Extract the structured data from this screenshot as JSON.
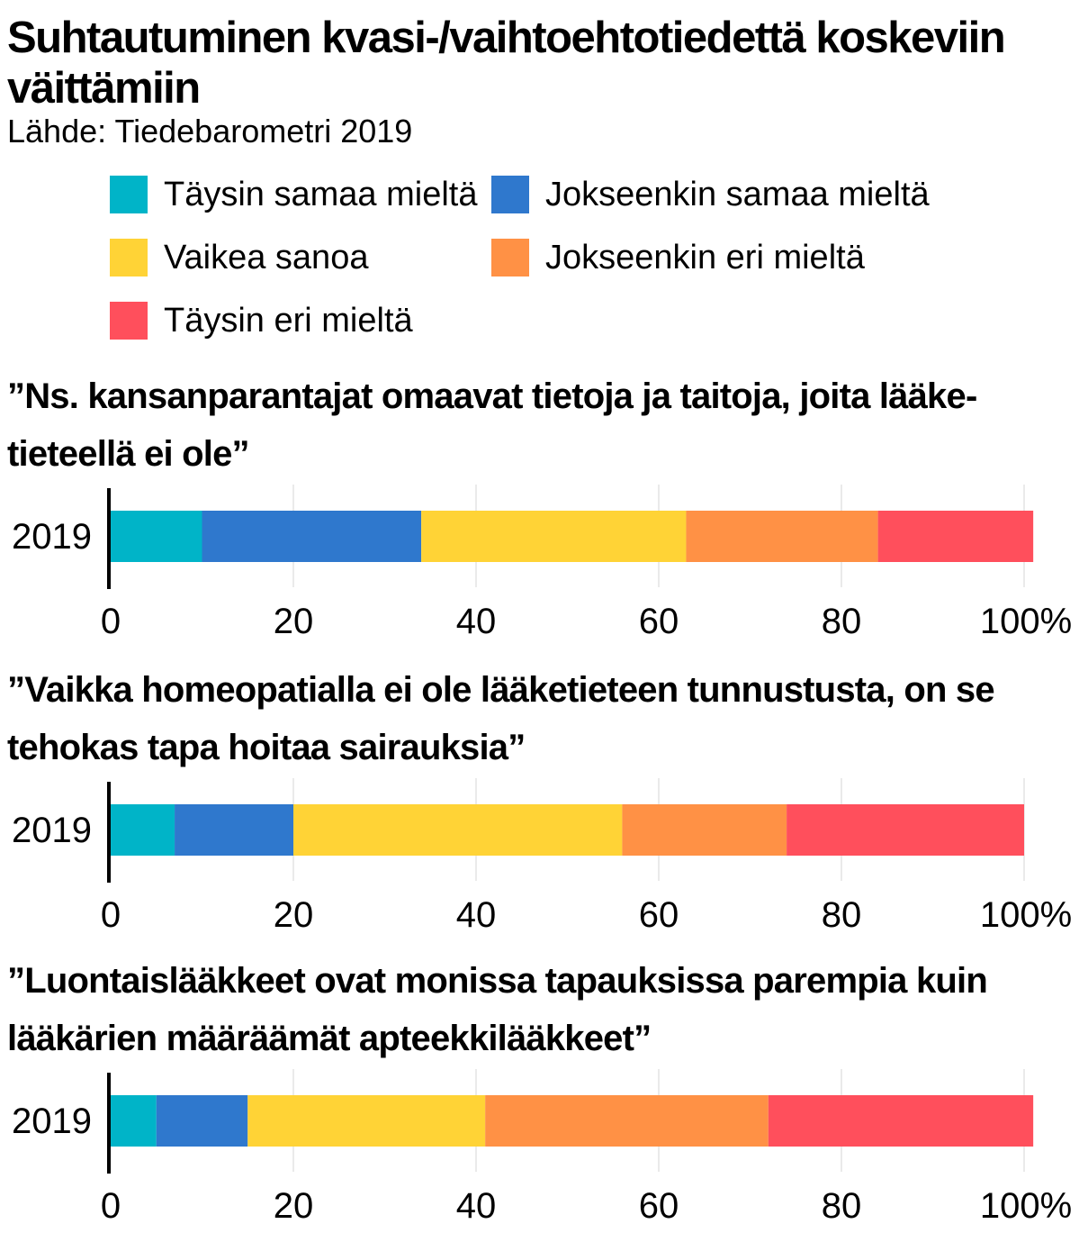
{
  "title": "Suhtautuminen kvasi-/vaihtoehtotiedettä koskeviin väittämiin",
  "source": "Lähde: Tiedebarometri 2019",
  "legend": [
    {
      "label": "Täysin samaa mieltä",
      "color": "#00b4c8"
    },
    {
      "label": "Jokseenkin samaa mieltä",
      "color": "#2f78cd"
    },
    {
      "label": "Vaikea sanoa",
      "color": "#ffd336"
    },
    {
      "label": "Jokseenkin eri mieltä",
      "color": "#ff9145"
    },
    {
      "label": "Täysin eri mieltä",
      "color": "#ff4f5c"
    }
  ],
  "chart_data": [
    {
      "type": "bar",
      "orientation": "horizontal",
      "stacked": true,
      "title": "”Ns. kansanparantajat omaavat tietoja ja taitoja, joita lääke-tieteellä ei ole”",
      "categories": [
        "2019"
      ],
      "series": [
        {
          "name": "Täysin samaa mieltä",
          "values": [
            10
          ]
        },
        {
          "name": "Jokseenkin samaa mieltä",
          "values": [
            24
          ]
        },
        {
          "name": "Vaikea sanoa",
          "values": [
            29
          ]
        },
        {
          "name": "Jokseenkin eri mieltä",
          "values": [
            21
          ]
        },
        {
          "name": "Täysin eri mieltä",
          "values": [
            17
          ]
        }
      ],
      "xlim": [
        0,
        100
      ],
      "xticks": [
        "0",
        "20",
        "40",
        "60",
        "80",
        "100%"
      ],
      "grid": true
    },
    {
      "type": "bar",
      "orientation": "horizontal",
      "stacked": true,
      "title": "”Vaikka homeopatialla ei ole lääketieteen tunnustusta, on se tehokas tapa hoitaa sairauksia”",
      "categories": [
        "2019"
      ],
      "series": [
        {
          "name": "Täysin samaa mieltä",
          "values": [
            7
          ]
        },
        {
          "name": "Jokseenkin samaa mieltä",
          "values": [
            13
          ]
        },
        {
          "name": "Vaikea sanoa",
          "values": [
            36
          ]
        },
        {
          "name": "Jokseenkin eri mieltä",
          "values": [
            18
          ]
        },
        {
          "name": "Täysin eri mieltä",
          "values": [
            26
          ]
        }
      ],
      "xlim": [
        0,
        100
      ],
      "xticks": [
        "0",
        "20",
        "40",
        "60",
        "80",
        "100%"
      ],
      "grid": true
    },
    {
      "type": "bar",
      "orientation": "horizontal",
      "stacked": true,
      "title": "”Luontaislääkkeet ovat monissa tapauksissa parempia kuin lääkärien määräämät apteekkilääkkeet”",
      "categories": [
        "2019"
      ],
      "series": [
        {
          "name": "Täysin samaa mieltä",
          "values": [
            5
          ]
        },
        {
          "name": "Jokseenkin samaa mieltä",
          "values": [
            10
          ]
        },
        {
          "name": "Vaikea sanoa",
          "values": [
            26
          ]
        },
        {
          "name": "Jokseenkin eri mieltä",
          "values": [
            31
          ]
        },
        {
          "name": "Täysin eri mieltä",
          "values": [
            29
          ]
        }
      ],
      "xlim": [
        0,
        100
      ],
      "xticks": [
        "0",
        "20",
        "40",
        "60",
        "80",
        "100%"
      ],
      "grid": true
    }
  ]
}
